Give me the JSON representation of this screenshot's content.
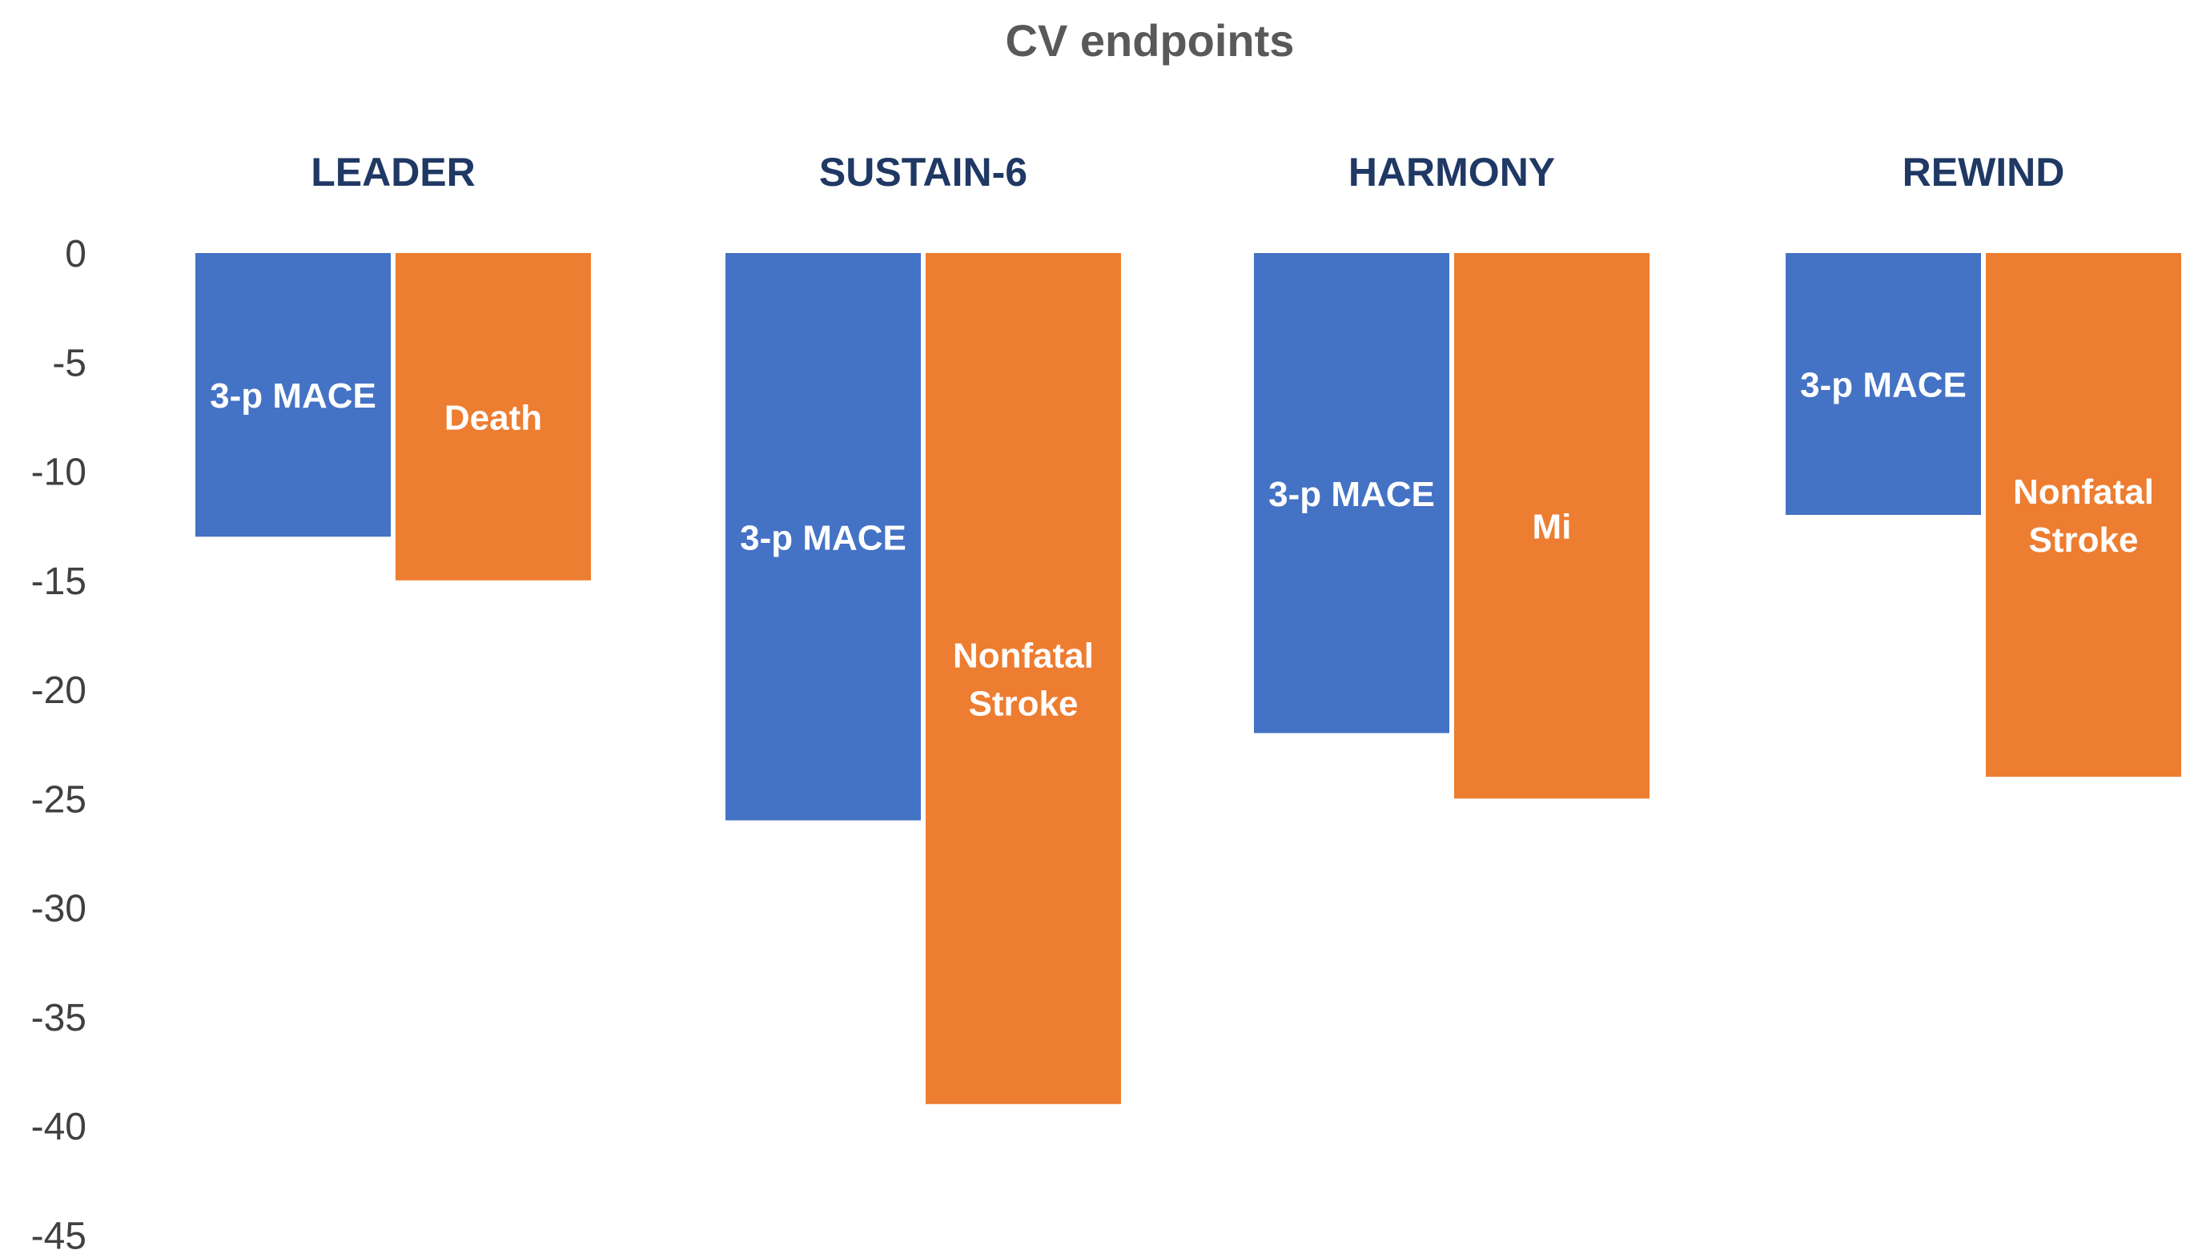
{
  "chart_data": {
    "type": "bar",
    "title": "CV endpoints",
    "xlabel": "",
    "ylabel": "",
    "ylim": [
      -45,
      0
    ],
    "yticks": [
      0,
      -5,
      -10,
      -15,
      -20,
      -25,
      -30,
      -35,
      -40,
      -45
    ],
    "grid": false,
    "legend": "none",
    "colors": {
      "blue": "#4472C4",
      "orange": "#ED7D31"
    },
    "categories": [
      "LEADER",
      "SUSTAIN-6",
      "HARMONY",
      "REWIND"
    ],
    "groups": [
      {
        "name": "LEADER",
        "bars": [
          {
            "label": [
              "3-p MACE"
            ],
            "value": -13,
            "color": "#4472C4"
          },
          {
            "label": [
              "Death"
            ],
            "value": -15,
            "color": "#ED7D31"
          }
        ]
      },
      {
        "name": "SUSTAIN-6",
        "bars": [
          {
            "label": [
              "3-p MACE"
            ],
            "value": -26,
            "color": "#4472C4"
          },
          {
            "label": [
              "Nonfatal",
              "Stroke"
            ],
            "value": -39,
            "color": "#ED7D31"
          }
        ]
      },
      {
        "name": "HARMONY",
        "bars": [
          {
            "label": [
              "3-p MACE"
            ],
            "value": -22,
            "color": "#4472C4"
          },
          {
            "label": [
              "Mi"
            ],
            "value": -25,
            "color": "#ED7D31"
          }
        ]
      },
      {
        "name": "REWIND",
        "bars": [
          {
            "label": [
              "3-p MACE"
            ],
            "value": -12,
            "color": "#4472C4"
          },
          {
            "label": [
              "Nonfatal",
              "Stroke"
            ],
            "value": -24,
            "color": "#ED7D31"
          }
        ]
      }
    ]
  }
}
